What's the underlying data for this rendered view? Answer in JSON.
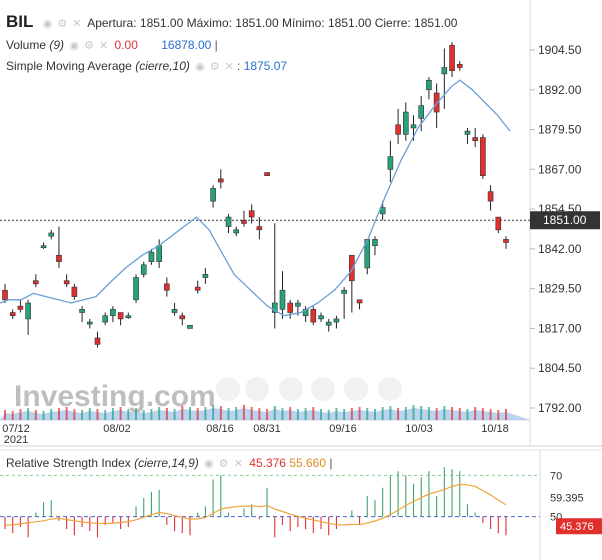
{
  "header": {
    "symbol": "BIL",
    "ohlc_text": "Apertura: 1851.00 Máximo: 1851.00 Mínimo: 1851.00 Cierre: 1851.00",
    "volume_label": "Volume",
    "volume_param": "(9)",
    "volume_value": "0.00",
    "volume_avg": "16878.00",
    "sma_label": "Simple Moving Average",
    "sma_param": "(cierre,10)",
    "sma_value": "1875.07"
  },
  "rsi_header": {
    "label": "Relative Strength Index",
    "param": "(cierre,14,9)",
    "value": "45.376",
    "signal": "55.660"
  },
  "watermark": "Investing.com",
  "colors": {
    "up": "#26a37a",
    "down": "#e0302e",
    "sma": "#6a9fd8",
    "rsi_line": "#f0a43c",
    "volume_area": "#a9c8ee",
    "last_price_line": "#333333"
  },
  "chart_data": [
    {
      "type": "candlestick",
      "x_tick_labels": [
        "07/12\n2021",
        "08/02",
        "08/16",
        "08/31",
        "09/16",
        "10/03",
        "10/18"
      ],
      "y_tick_labels": [
        "1904.50",
        "1892.00",
        "1879.50",
        "1867.00",
        "1854.50",
        "1842.00",
        "1829.50",
        "1817.00",
        "1804.50",
        "1792.00"
      ],
      "ylim": [
        1789,
        1909
      ],
      "last_price": "1851.00",
      "candles": [
        [
          1829,
          1831,
          1825,
          1826
        ],
        [
          1822,
          1823,
          1820,
          1821
        ],
        [
          1824,
          1826,
          1822,
          1823
        ],
        [
          1820,
          1826,
          1815,
          1825
        ],
        [
          1832,
          1834,
          1830,
          1831
        ],
        [
          1843,
          1844,
          1842,
          1843
        ],
        [
          1846,
          1848,
          1845,
          1847
        ],
        [
          1840,
          1849,
          1836,
          1838
        ],
        [
          1832,
          1834,
          1830,
          1831
        ],
        [
          1830,
          1831,
          1826,
          1827
        ],
        [
          1822,
          1824,
          1819,
          1823
        ],
        [
          1819,
          1820,
          1817,
          1819
        ],
        [
          1814,
          1816,
          1811,
          1812
        ],
        [
          1819,
          1822,
          1818,
          1821
        ],
        [
          1821,
          1824,
          1819,
          1823
        ],
        [
          1822,
          1822,
          1818,
          1820
        ],
        [
          1821,
          1822,
          1820,
          1821
        ],
        [
          1826,
          1834,
          1825,
          1833
        ],
        [
          1834,
          1838,
          1833,
          1837
        ],
        [
          1838,
          1842,
          1837,
          1841
        ],
        [
          1838,
          1845,
          1836,
          1843
        ],
        [
          1831,
          1833,
          1827,
          1829
        ],
        [
          1822,
          1825,
          1821,
          1823
        ],
        [
          1821,
          1822,
          1818,
          1820
        ],
        [
          1817,
          1818,
          1817,
          1818
        ],
        [
          1830,
          1832,
          1828,
          1829
        ],
        [
          1833,
          1836,
          1831,
          1834
        ],
        [
          1857,
          1862,
          1855,
          1861
        ],
        [
          1864,
          1867,
          1861,
          1863
        ],
        [
          1849,
          1853,
          1847,
          1852
        ],
        [
          1847,
          1849,
          1846,
          1848
        ],
        [
          1851,
          1854,
          1849,
          1850
        ],
        [
          1854,
          1856,
          1850,
          1852
        ],
        [
          1849,
          1852,
          1845,
          1848
        ],
        [
          1866,
          1866,
          1865,
          1865
        ],
        [
          1822,
          1850,
          1817,
          1825
        ],
        [
          1823,
          1835,
          1820,
          1829
        ],
        [
          1825,
          1826,
          1820,
          1822
        ],
        [
          1824,
          1826,
          1821,
          1825
        ],
        [
          1821,
          1824,
          1819,
          1823
        ],
        [
          1823,
          1824,
          1818,
          1819
        ],
        [
          1820,
          1822,
          1819,
          1821
        ],
        [
          1818,
          1820,
          1816,
          1819
        ],
        [
          1819,
          1821,
          1817,
          1820
        ],
        [
          1828,
          1830,
          1820,
          1829
        ],
        [
          1840,
          1840,
          1822,
          1832
        ],
        [
          1826,
          1826,
          1823,
          1825
        ],
        [
          1836,
          1844,
          1834,
          1845
        ],
        [
          1843,
          1846,
          1840,
          1845
        ],
        [
          1853,
          1857,
          1851,
          1855
        ],
        [
          1867,
          1876,
          1863,
          1871
        ],
        [
          1881,
          1886,
          1875,
          1878
        ],
        [
          1878,
          1888,
          1876,
          1885
        ],
        [
          1880,
          1884,
          1876,
          1881
        ],
        [
          1883,
          1890,
          1879,
          1887
        ],
        [
          1892,
          1896,
          1889,
          1895
        ],
        [
          1891,
          1894,
          1880,
          1885
        ],
        [
          1897,
          1905,
          1886,
          1899
        ],
        [
          1906,
          1907,
          1896,
          1898
        ],
        [
          1900,
          1901,
          1898,
          1899
        ],
        [
          1878,
          1880,
          1875,
          1879
        ],
        [
          1877,
          1880,
          1874,
          1876
        ],
        [
          1877,
          1878,
          1864,
          1865
        ],
        [
          1860,
          1862,
          1854,
          1857
        ],
        [
          1852,
          1852,
          1847,
          1848
        ],
        [
          1845,
          1846,
          1842,
          1844
        ]
      ],
      "sma": [
        [
          0,
          1825
        ],
        [
          2,
          1826
        ],
        [
          5,
          1826
        ],
        [
          8,
          1828
        ],
        [
          11,
          1827
        ],
        [
          14,
          1826
        ],
        [
          17,
          1825
        ],
        [
          20,
          1826
        ],
        [
          23,
          1827
        ],
        [
          26,
          1831
        ],
        [
          30,
          1836
        ],
        [
          34,
          1840
        ],
        [
          38,
          1843
        ],
        [
          41,
          1846
        ],
        [
          44,
          1849
        ],
        [
          47,
          1852
        ],
        [
          50,
          1848
        ],
        [
          53,
          1841
        ],
        [
          56,
          1834
        ],
        [
          60,
          1829
        ],
        [
          64,
          1824
        ],
        [
          68,
          1821
        ],
        [
          72,
          1822
        ],
        [
          76,
          1825
        ],
        [
          80,
          1829
        ],
        [
          84,
          1835
        ],
        [
          88,
          1845
        ],
        [
          92,
          1858
        ],
        [
          96,
          1870
        ],
        [
          100,
          1880
        ],
        [
          104,
          1887
        ],
        [
          108,
          1893
        ],
        [
          110,
          1895
        ],
        [
          113,
          1892
        ],
        [
          116,
          1888
        ],
        [
          119,
          1884
        ],
        [
          122,
          1879
        ]
      ]
    },
    {
      "type": "rsi",
      "y_tick_labels": [
        "70",
        "59.395",
        "50"
      ],
      "last_value": "45.376",
      "ylim": [
        30,
        75
      ]
    }
  ]
}
